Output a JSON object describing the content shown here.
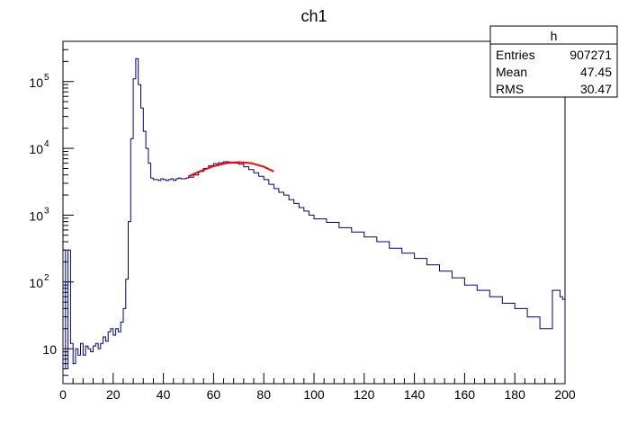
{
  "chart_data": {
    "type": "histogram",
    "title": "ch1",
    "xlabel": "",
    "ylabel": "",
    "xlim": [
      0,
      200
    ],
    "ylim": [
      3,
      400000
    ],
    "y_scale": "log",
    "grid": false,
    "x_tick_labels": [
      "0",
      "20",
      "40",
      "60",
      "80",
      "100",
      "120",
      "140",
      "160",
      "180",
      "200"
    ],
    "y_tick_labels": [
      {
        "base": "10",
        "exp": ""
      },
      {
        "base": "10",
        "exp": "2"
      },
      {
        "base": "10",
        "exp": "3"
      },
      {
        "base": "10",
        "exp": "4"
      },
      {
        "base": "10",
        "exp": "5"
      }
    ],
    "stats_box": {
      "name": "h",
      "rows": [
        {
          "label": "Entries",
          "value": "907271"
        },
        {
          "label": "Mean",
          "value": "47.45"
        },
        {
          "label": "RMS",
          "value": "30.47"
        }
      ]
    },
    "series": [
      {
        "kind": "step-histogram",
        "color": "#000080",
        "x": [
          0,
          1,
          2,
          3,
          4,
          5,
          6,
          7,
          8,
          9,
          10,
          11,
          12,
          13,
          14,
          15,
          16,
          17,
          18,
          19,
          20,
          21,
          22,
          23,
          24,
          25,
          26,
          27,
          28,
          29,
          30,
          31,
          32,
          33,
          34,
          35,
          36,
          37,
          38,
          39,
          40,
          41,
          42,
          43,
          44,
          45,
          46,
          47,
          48,
          49,
          50,
          52,
          54,
          56,
          58,
          60,
          62,
          64,
          66,
          68,
          70,
          72,
          74,
          76,
          78,
          80,
          82,
          84,
          86,
          88,
          90,
          92,
          94,
          96,
          98,
          100,
          105,
          110,
          115,
          120,
          125,
          130,
          135,
          140,
          145,
          150,
          155,
          160,
          165,
          170,
          175,
          180,
          185,
          190,
          195,
          198,
          199,
          200
        ],
        "y": [
          300,
          5,
          300,
          12,
          6,
          10,
          8,
          12,
          8,
          11,
          10,
          9,
          11,
          12,
          10,
          12,
          15,
          13,
          18,
          20,
          16,
          20,
          18,
          25,
          40,
          110,
          800,
          14000,
          110000,
          220000,
          90000,
          40000,
          18000,
          10000,
          6000,
          3600,
          3400,
          3400,
          3300,
          3500,
          3400,
          3300,
          3400,
          3500,
          3300,
          3500,
          3600,
          3500,
          3500,
          3600,
          3700,
          4000,
          4500,
          5000,
          5500,
          5900,
          6100,
          6300,
          6200,
          6000,
          5800,
          5300,
          4800,
          4300,
          3800,
          3400,
          2900,
          2500,
          2200,
          2000,
          1700,
          1500,
          1300,
          1150,
          1000,
          880,
          780,
          650,
          560,
          470,
          400,
          320,
          270,
          225,
          180,
          145,
          115,
          90,
          75,
          60,
          48,
          40,
          30,
          20,
          75,
          60,
          55,
          3
        ],
        "note": "log-scale counts per bin"
      },
      {
        "kind": "fit-line",
        "color": "#ff0000",
        "x": [
          50,
          55,
          60,
          65,
          70,
          75,
          80,
          84
        ],
        "y": [
          3800,
          4600,
          5400,
          6000,
          6200,
          6000,
          5300,
          4500
        ]
      }
    ]
  }
}
